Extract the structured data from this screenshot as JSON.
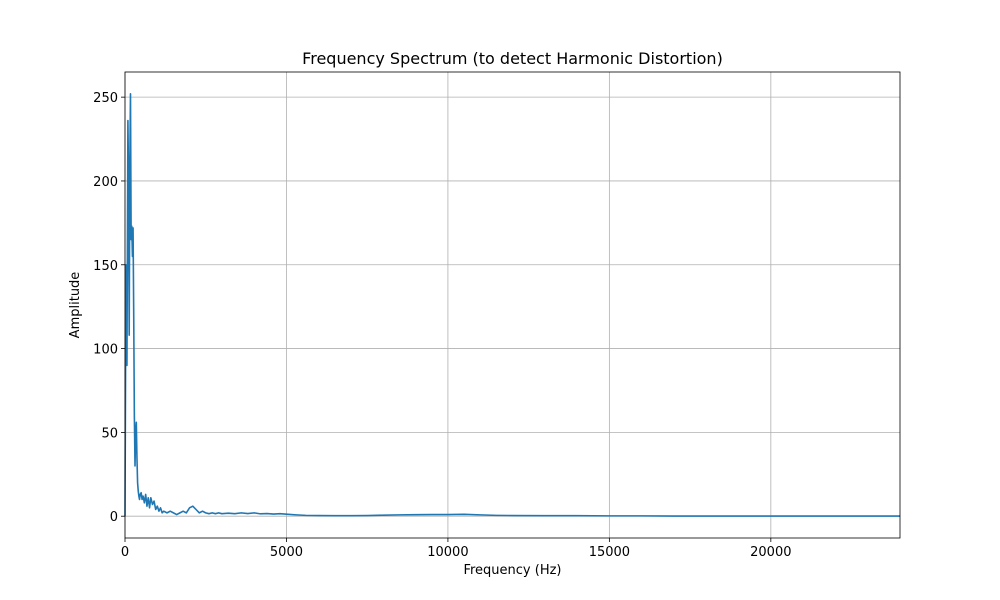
{
  "chart_data": {
    "type": "line",
    "title": "Frequency Spectrum (to detect Harmonic Distortion)",
    "xlabel": "Frequency (Hz)",
    "ylabel": "Amplitude",
    "xlim": [
      0,
      24000
    ],
    "ylim": [
      -13,
      265
    ],
    "xticks": [
      0,
      5000,
      10000,
      15000,
      20000
    ],
    "yticks": [
      0,
      50,
      100,
      150,
      200,
      250
    ],
    "grid": true,
    "color": "#1f77b4",
    "series": [
      {
        "x": [
          0,
          30,
          60,
          90,
          110,
          130,
          150,
          170,
          190,
          210,
          230,
          250,
          270,
          290,
          310,
          330,
          350,
          370,
          390,
          410,
          430,
          450,
          470,
          500,
          530,
          560,
          600,
          640,
          680,
          720,
          760,
          800,
          850,
          900,
          950,
          1000,
          1050,
          1100,
          1150,
          1200,
          1300,
          1400,
          1500,
          1600,
          1700,
          1800,
          1900,
          2000,
          2100,
          2200,
          2300,
          2400,
          2500,
          2600,
          2700,
          2800,
          2900,
          3000,
          3200,
          3400,
          3600,
          3800,
          4000,
          4200,
          4400,
          4600,
          4800,
          5000,
          5300,
          5600,
          6000,
          6500,
          7000,
          7500,
          8000,
          8500,
          9000,
          9500,
          10000,
          10500,
          11000,
          11500,
          12000,
          13000,
          14000,
          15000,
          16000,
          17000,
          18000,
          19000,
          20000,
          21000,
          22000,
          23000,
          24000
        ],
        "y": [
          0,
          150,
          90,
          236,
          200,
          108,
          210,
          252,
          165,
          173,
          155,
          172,
          120,
          60,
          30,
          50,
          56,
          35,
          20,
          15,
          12,
          10,
          13,
          14,
          10,
          12,
          8,
          13,
          6,
          11,
          5,
          11,
          7,
          9,
          4,
          6,
          3,
          5,
          2,
          3,
          2,
          3,
          2,
          1,
          2,
          3,
          2,
          5,
          6,
          4,
          2,
          3,
          2,
          1.5,
          2,
          1.5,
          2,
          1.5,
          1.8,
          1.5,
          2,
          1.6,
          2,
          1.4,
          1.6,
          1.3,
          1.5,
          1.2,
          0.8,
          0.5,
          0.4,
          0.3,
          0.3,
          0.4,
          0.6,
          0.8,
          0.9,
          1.0,
          1.0,
          1.1,
          0.8,
          0.5,
          0.4,
          0.3,
          0.3,
          0.2,
          0.2,
          0.1,
          0.1,
          0.1,
          0.1,
          0.1,
          0.1,
          0.1,
          0.1
        ]
      }
    ]
  }
}
